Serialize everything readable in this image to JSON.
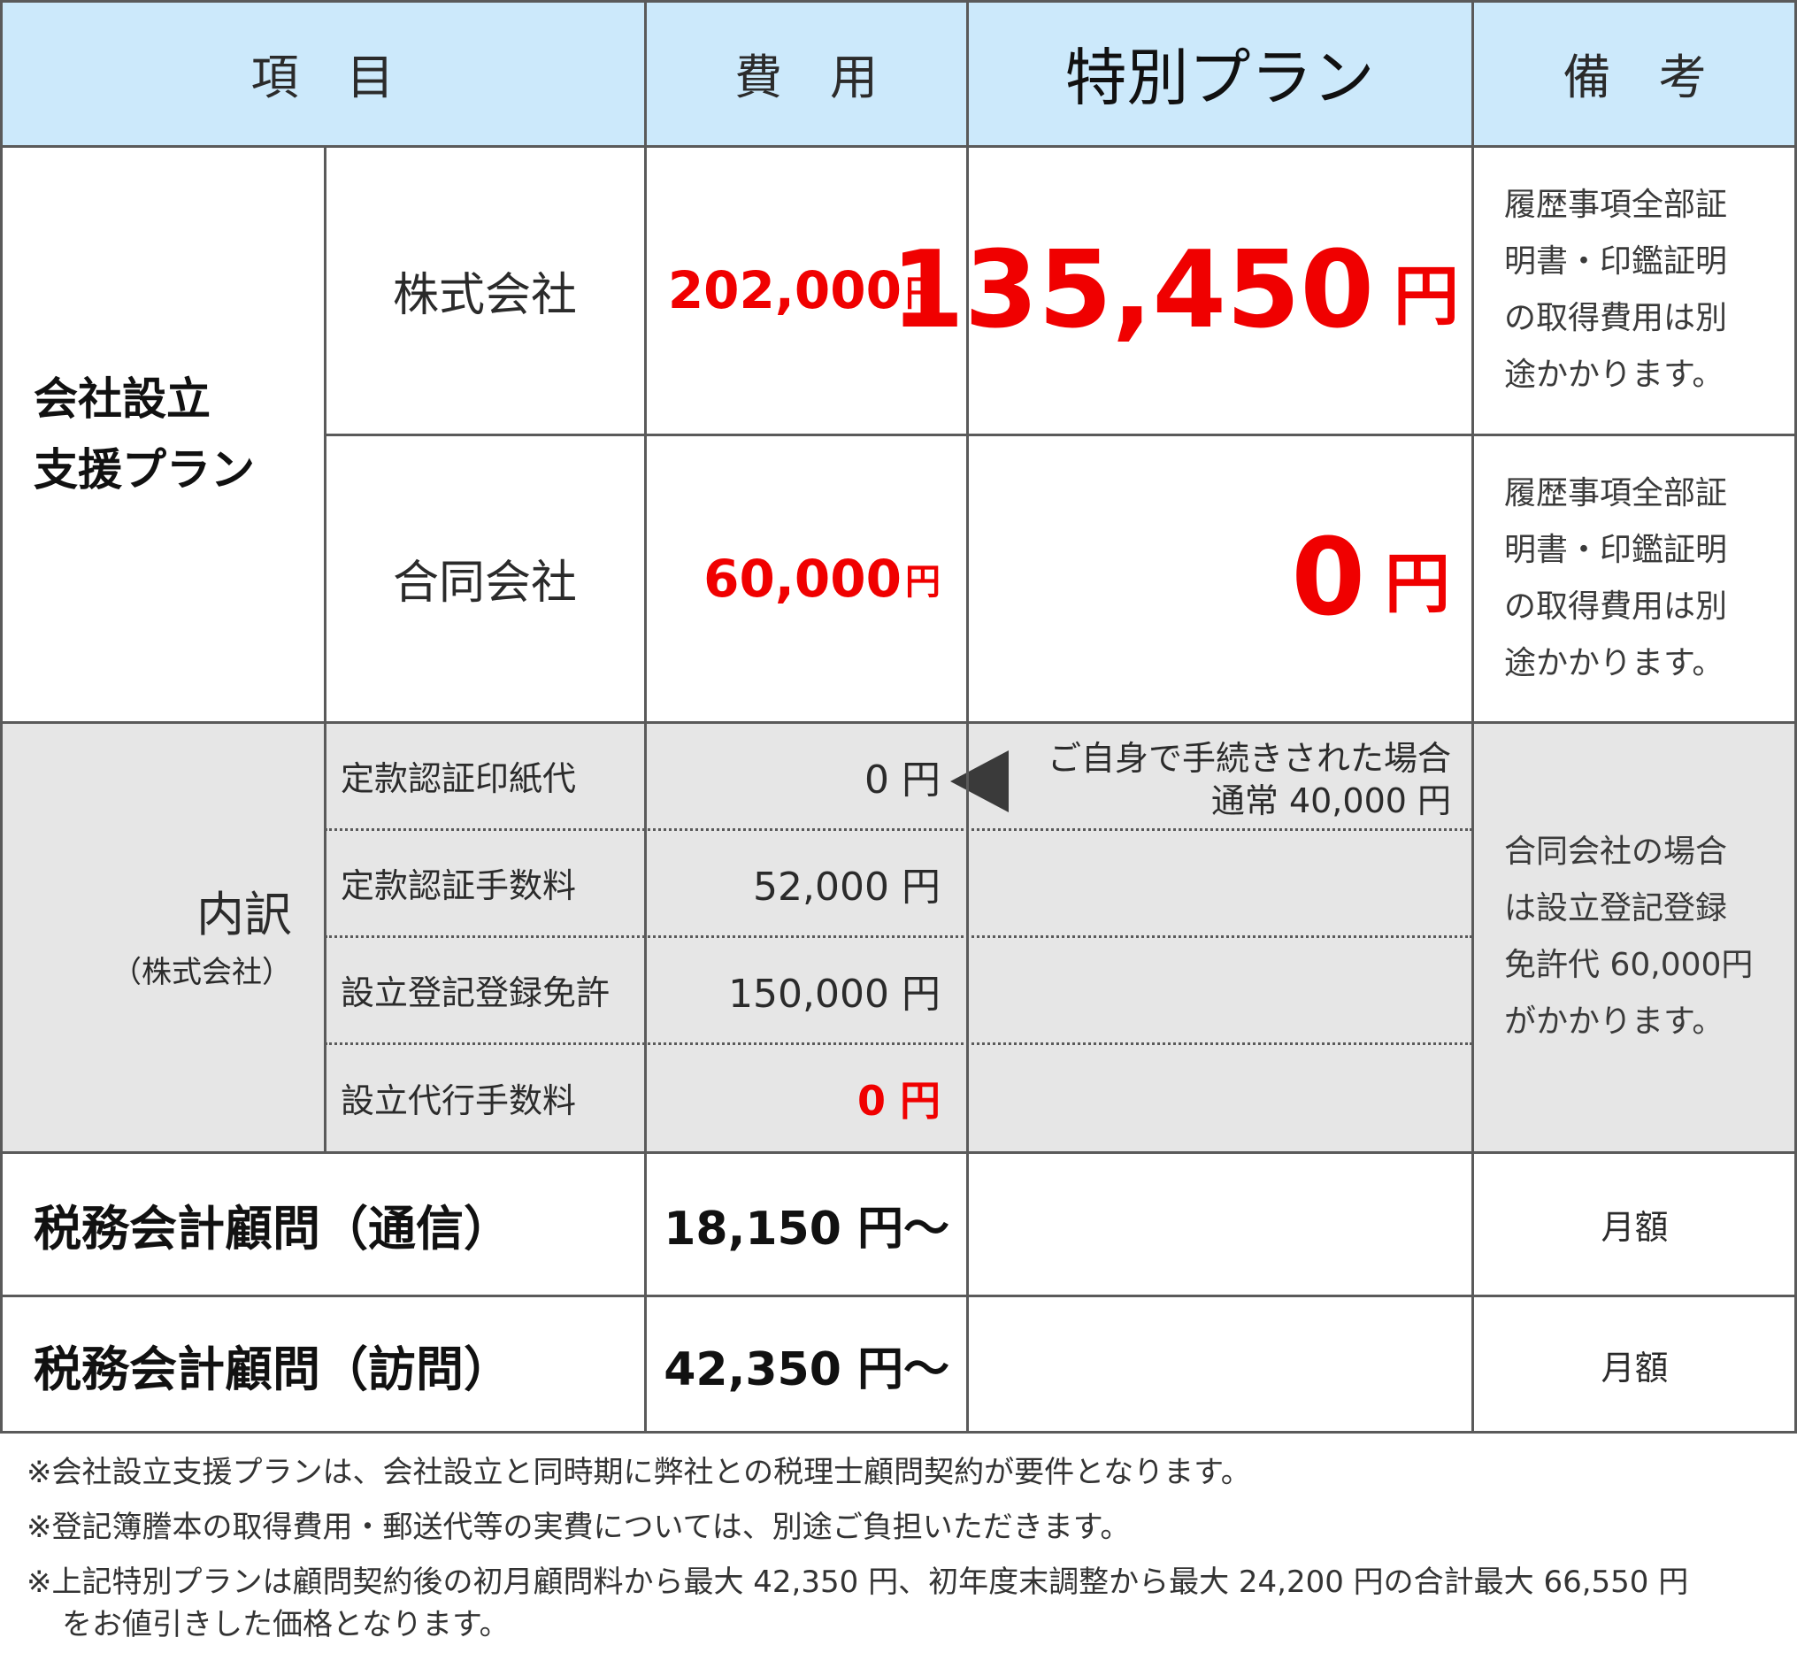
{
  "header": {
    "item": "項　目",
    "cost": "費　用",
    "special": "特別プラン",
    "remarks": "備　考"
  },
  "setup_plan": {
    "label_line1": "会社設立",
    "label_line2": "支援プラン",
    "kabushiki": {
      "name": "株式会社",
      "cost_value": "202,000",
      "cost_unit": "円",
      "special_value": "135,450",
      "special_unit": "円",
      "remark_lines": [
        "履歴事項全部証",
        "明書・印鑑証明",
        "の取得費用は別",
        "途かかります。"
      ]
    },
    "godo": {
      "name": "合同会社",
      "cost_value": "60,000",
      "cost_unit": "円",
      "special_value": "0",
      "special_unit": "円",
      "remark_lines": [
        "履歴事項全部証",
        "明書・印鑑証明",
        "の取得費用は別",
        "途かかります。"
      ]
    }
  },
  "breakdown": {
    "label": "内訳",
    "sublabel": "（株式会社）",
    "items": [
      {
        "name": "定款認証印紙代",
        "value": "0 円"
      },
      {
        "name": "定款認証手数料",
        "value": "52,000 円"
      },
      {
        "name": "設立登記登録免許",
        "value": "150,000 円"
      },
      {
        "name": "設立代行手数料",
        "value": "0 円"
      }
    ],
    "callout_line1": "ご自身で手続きされた場合",
    "callout_line2": "通常 40,000 円",
    "remark_lines": [
      "合同会社の場合",
      "は設立登記登録",
      "免許代 60,000円",
      "がかかります。"
    ]
  },
  "consult_remote": {
    "label": "税務会計顧問（通信）",
    "cost": "18,150 円〜",
    "remark": "月額"
  },
  "consult_visit": {
    "label": "税務会計顧問（訪問）",
    "cost": "42,350 円〜",
    "remark": "月額"
  },
  "footnotes": [
    "※会社設立支援プランは、会社設立と同時期に弊社との税理士顧問契約が要件となります。",
    "※登記簿謄本の取得費用・郵送代等の実費については、別途ご負担いただきます。",
    "※上記特別プランは顧問契約後の初月顧問料から最大 42,350 円、初年度末調整から最大 24,200 円の合計最大 66,550 円",
    "をお値引きした価格となります。"
  ],
  "colors": {
    "header_bg": "#cce9fb",
    "breakdown_bg": "#e6e6e6",
    "price_red": "#f00000",
    "border": "#5a5a5a"
  }
}
